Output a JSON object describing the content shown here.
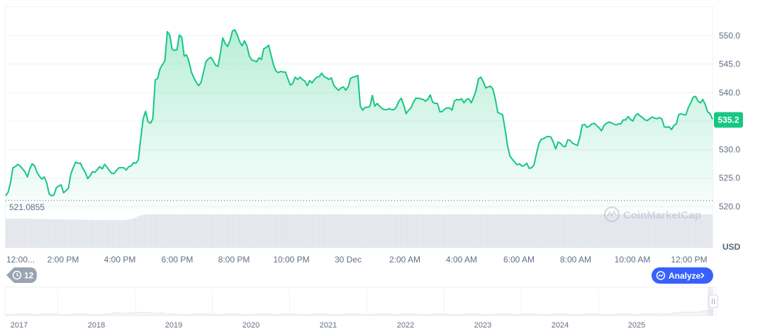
{
  "chart_data": {
    "type": "area",
    "title": "",
    "xlabel": "",
    "ylabel": "",
    "y_unit": "USD",
    "ylim": [
      519,
      555
    ],
    "y_ticks": [
      "550.0",
      "545.0",
      "540.0",
      "535.0",
      "530.0",
      "525.0",
      "520.0"
    ],
    "x_tick_labels": [
      "12:00...",
      "2:00 PM",
      "4:00 PM",
      "6:00 PM",
      "8:00 PM",
      "10:00 PM",
      "30 Dec",
      "2:00 AM",
      "4:00 AM",
      "6:00 AM",
      "8:00 AM",
      "10:00 AM",
      "12:00 PM"
    ],
    "grid": true,
    "baseline": {
      "label": "521.0855",
      "value": 521.0855
    },
    "current_price": {
      "label": "535.2",
      "value": 535.2
    },
    "line_color": "#16c784",
    "badge_color": "#16c784",
    "series": [
      {
        "values": [
          521.9,
          522.5,
          524.2,
          526.8,
          527.0,
          527.4,
          527.1,
          526.6,
          526.1,
          525.2,
          526.6,
          527.5,
          527.1,
          526.0,
          525.3,
          524.8,
          525.2,
          524.2,
          522.2,
          521.9,
          522.0,
          523.3,
          523.6,
          523.8,
          522.4,
          522.8,
          523.2,
          525.7,
          526.8,
          527.8,
          527.6,
          527.6,
          526.7,
          526.0,
          524.9,
          525.4,
          526.1,
          526.0,
          526.5,
          527.0,
          526.6,
          527.4,
          526.9,
          526.3,
          525.8,
          525.8,
          526.4,
          526.8,
          526.8,
          526.8,
          526.4,
          527.0,
          527.1,
          527.7,
          527.6,
          528.2,
          532.0,
          535.4,
          536.7,
          534.9,
          534.6,
          535.4,
          542.2,
          542.5,
          544.2,
          544.9,
          545.6,
          550.7,
          550.1,
          547.6,
          547.4,
          547.5,
          550.1,
          549.7,
          546.4,
          546.6,
          545.4,
          543.6,
          542.6,
          541.8,
          541.2,
          541.8,
          543.6,
          545.4,
          545.9,
          546.2,
          545.6,
          544.8,
          544.6,
          546.9,
          549.6,
          548.6,
          548.1,
          549.1,
          550.8,
          551.0,
          550.1,
          548.9,
          548.2,
          549.1,
          548.2,
          546.4,
          545.7,
          545.6,
          545.4,
          546.1,
          545.8,
          547.7,
          547.9,
          548.3,
          546.6,
          544.9,
          543.8,
          543.5,
          543.7,
          543.6,
          543.6,
          542.4,
          541.3,
          541.6,
          542.7,
          542.3,
          542.7,
          542.3,
          542.0,
          541.2,
          542.1,
          541.7,
          542.3,
          542.7,
          542.8,
          543.4,
          542.8,
          542.6,
          542.3,
          542.6,
          541.3,
          540.8,
          540.4,
          540.8,
          541.0,
          540.4,
          541.0,
          542.5,
          542.7,
          542.8,
          543.0,
          537.6,
          536.9,
          537.4,
          537.4,
          537.6,
          539.5,
          537.6,
          538.1,
          537.6,
          537.2,
          537.0,
          537.0,
          537.2,
          537.0,
          537.0,
          537.5,
          538.5,
          539.0,
          537.8,
          536.3,
          536.9,
          537.3,
          538.3,
          539.0,
          539.0,
          538.9,
          538.8,
          538.5,
          538.8,
          539.6,
          538.3,
          538.1,
          538.1,
          536.6,
          536.7,
          537.1,
          537.3,
          537.3,
          536.9,
          538.5,
          538.8,
          538.7,
          538.9,
          538.2,
          538.8,
          538.9,
          538.2,
          539.2,
          540.4,
          542.4,
          542.7,
          541.9,
          540.8,
          541.0,
          541.1,
          540.6,
          538.8,
          536.5,
          536.3,
          536.1,
          533.6,
          530.8,
          528.9,
          528.3,
          527.8,
          527.3,
          527.5,
          527.1,
          527.2,
          527.6,
          526.7,
          526.8,
          527.3,
          529.2,
          531.0,
          531.8,
          531.9,
          532.2,
          532.3,
          532.2,
          531.3,
          530.1,
          531.3,
          531.1,
          530.6,
          530.5,
          531.7,
          531.6,
          531.1,
          530.9,
          530.7,
          532.1,
          534.3,
          534.4,
          533.9,
          534.1,
          534.5,
          534.6,
          534.2,
          533.8,
          533.3,
          534.2,
          534.6,
          534.8,
          534.7,
          534.5,
          534.3,
          534.5,
          534.5,
          535.2,
          535.2,
          535.8,
          535.3,
          535.0,
          535.9,
          536.3,
          535.9,
          535.6,
          535.2,
          535.1,
          535.4,
          535.7,
          535.5,
          535.4,
          535.6,
          535.4,
          534.0,
          533.9,
          534.0,
          533.5,
          534.2,
          534.5,
          536.1,
          536.3,
          536.1,
          536.1,
          537.4,
          538.2,
          539.2,
          539.3,
          538.5,
          538.2,
          538.8,
          537.9,
          536.6,
          536.3,
          535.3
        ]
      }
    ],
    "volume_bars": [
      100,
      100,
      100,
      100,
      100,
      100,
      100,
      100,
      100,
      100,
      100,
      99,
      99,
      99,
      99,
      99,
      99,
      99,
      98,
      98,
      98,
      98,
      98,
      98,
      98,
      97,
      97,
      97,
      97,
      97,
      97,
      96,
      96,
      96,
      96,
      96,
      96,
      96,
      95,
      95,
      95,
      95,
      95,
      95,
      95,
      95,
      95,
      95,
      95,
      95,
      95,
      95,
      96,
      97,
      99,
      101,
      104,
      108,
      111,
      113,
      114,
      115,
      115,
      115,
      115,
      115,
      115,
      115,
      115,
      115,
      115,
      115,
      115,
      115,
      115,
      115,
      115,
      115,
      115,
      115,
      115,
      115,
      115,
      115,
      115,
      115,
      115,
      115,
      115,
      115,
      115,
      115,
      115,
      115,
      115,
      115,
      115,
      115,
      115,
      115,
      115,
      115,
      115,
      115,
      115,
      115,
      115,
      115,
      115,
      115,
      115,
      115,
      115,
      115,
      115,
      115,
      115,
      115,
      115,
      115,
      115,
      115,
      115,
      115,
      115,
      115,
      115,
      115,
      115,
      115,
      115,
      115,
      115,
      115,
      115,
      115,
      115,
      115,
      115,
      115,
      115,
      115,
      115,
      115,
      115,
      115,
      115,
      115,
      115,
      115,
      115,
      115,
      115,
      115,
      115,
      115,
      115,
      115,
      115,
      115,
      115,
      115,
      115,
      115,
      115,
      115,
      115,
      115,
      115,
      115,
      115,
      115,
      115,
      115,
      115,
      115,
      115,
      115,
      115,
      115,
      115,
      115,
      115,
      115,
      115,
      115,
      115,
      115,
      115,
      115,
      115,
      115,
      115,
      115,
      115,
      115,
      115,
      115,
      115,
      115,
      115,
      115,
      115,
      115,
      115,
      115,
      115,
      115,
      115,
      115,
      115,
      115,
      115,
      115,
      115,
      115,
      115,
      115,
      115,
      115,
      115,
      115,
      115,
      115,
      115,
      115,
      115,
      115,
      115,
      115,
      115,
      115,
      115,
      115,
      115,
      115,
      115,
      115,
      115,
      115,
      115,
      115,
      115,
      115,
      115,
      115,
      115,
      115,
      115,
      115,
      115,
      115,
      115,
      115,
      115,
      115,
      115,
      115,
      115,
      115,
      115,
      115,
      115,
      115,
      115,
      115,
      115,
      115,
      115,
      115,
      115,
      115,
      115,
      115,
      115,
      115,
      115,
      115,
      115,
      115,
      115,
      115,
      115,
      115,
      115,
      115,
      115,
      115,
      115,
      115,
      115,
      115,
      115,
      115,
      115,
      115,
      115,
      115,
      115,
      115,
      115,
      115,
      115,
      115,
      115,
      115,
      115
    ]
  },
  "watermark": {
    "text": "CoinMarketCap",
    "icon": "coinmarketcap-logo-icon"
  },
  "controls": {
    "history_button": {
      "icon": "history-icon",
      "count": "12"
    },
    "analyze_button": {
      "label": "Analyze",
      "icon": "analyze-icon",
      "arrow_icon": "chevron-right-icon",
      "color": "#3861fb"
    }
  },
  "navigator": {
    "year_labels": [
      "2017",
      "2018",
      "2019",
      "2020",
      "2021",
      "2022",
      "2023",
      "2024",
      "2025"
    ],
    "handle_icon": "drag-handle-icon"
  }
}
